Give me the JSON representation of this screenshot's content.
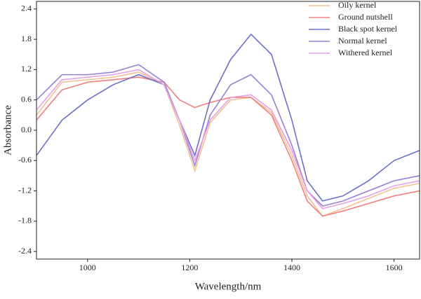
{
  "chart_data": {
    "type": "line",
    "x_label": "Wavelength/nm",
    "y_label": "Absorbance",
    "x": [
      900,
      950,
      1000,
      1050,
      1100,
      1150,
      1180,
      1210,
      1240,
      1280,
      1320,
      1360,
      1400,
      1430,
      1460,
      1500,
      1550,
      1600,
      1650
    ],
    "series": [
      {
        "name": "Oily kernel",
        "color": "#f5c08f",
        "values": [
          0.3,
          0.95,
          1.0,
          1.05,
          1.15,
          0.9,
          0.1,
          -0.8,
          0.15,
          0.6,
          0.65,
          0.35,
          -0.5,
          -1.3,
          -1.7,
          -1.55,
          -1.35,
          -1.15,
          -1.05
        ]
      },
      {
        "name": "Ground nutshell",
        "color": "#f07f7f",
        "values": [
          0.2,
          0.8,
          0.95,
          1.0,
          1.05,
          0.95,
          0.6,
          0.45,
          0.55,
          0.65,
          0.65,
          0.3,
          -0.6,
          -1.4,
          -1.7,
          -1.6,
          -1.45,
          -1.3,
          -1.2
        ]
      },
      {
        "name": "Black spot kernel",
        "color": "#6a6fcc",
        "values": [
          -0.5,
          0.2,
          0.6,
          0.9,
          1.1,
          0.9,
          0.2,
          -0.5,
          0.6,
          1.4,
          1.9,
          1.5,
          0.2,
          -1.0,
          -1.4,
          -1.3,
          -1.0,
          -0.6,
          -0.4
        ]
      },
      {
        "name": "Normal kernel",
        "color": "#9a7fd6",
        "values": [
          0.6,
          1.1,
          1.1,
          1.15,
          1.3,
          0.95,
          0.2,
          -0.7,
          0.3,
          0.9,
          1.1,
          0.7,
          -0.3,
          -1.2,
          -1.5,
          -1.4,
          -1.2,
          -1.0,
          -0.9
        ]
      },
      {
        "name": "Withered kernel",
        "color": "#e79ee6",
        "values": [
          0.4,
          1.0,
          1.05,
          1.1,
          1.2,
          0.9,
          0.2,
          -0.6,
          0.2,
          0.65,
          0.7,
          0.4,
          -0.4,
          -1.2,
          -1.55,
          -1.45,
          -1.3,
          -1.1,
          -1.0
        ]
      }
    ],
    "xlim": [
      900,
      1650
    ],
    "ylim": [
      -2.55,
      2.55
    ],
    "xticks": [
      1000,
      1200,
      1400,
      1600
    ],
    "yticks": [
      -2.4,
      -1.8,
      -1.2,
      -0.6,
      {
        "value": 0,
        "label": "0.0"
      },
      0.6,
      1.2,
      1.8,
      2.4
    ],
    "legend": "top-right"
  }
}
